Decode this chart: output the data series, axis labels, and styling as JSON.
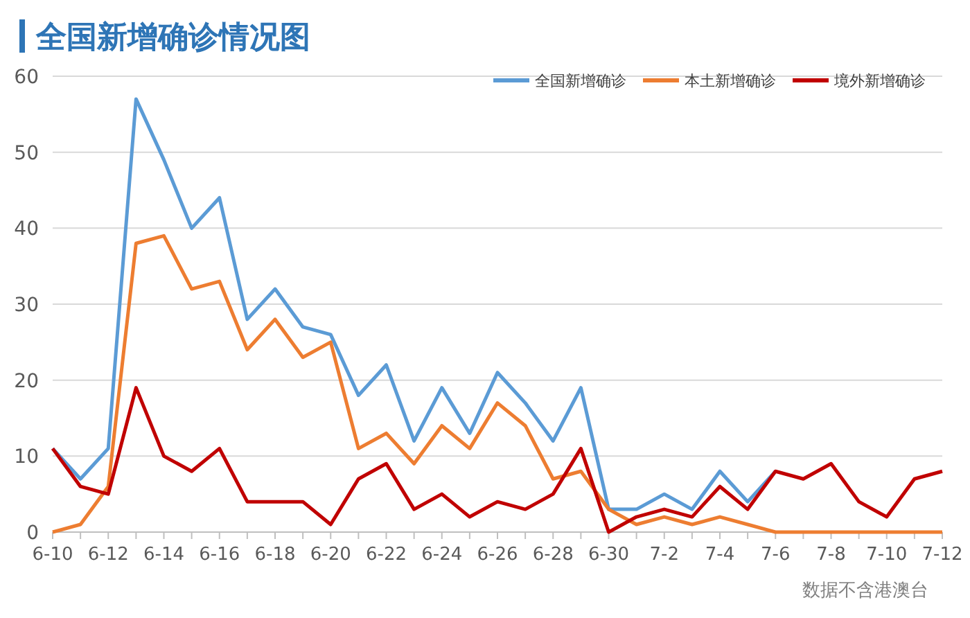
{
  "chart_data": {
    "type": "line",
    "title": "全国新增确诊情况图",
    "categories": [
      "6-10",
      null,
      "6-12",
      null,
      "6-14",
      null,
      "6-16",
      null,
      "6-18",
      null,
      "6-20",
      null,
      "6-22",
      null,
      "6-24",
      null,
      "6-26",
      null,
      "6-28",
      null,
      "6-30",
      null,
      "7-2",
      null,
      "7-4",
      null,
      "7-6",
      null,
      "7-8",
      null,
      "7-10",
      null,
      "7-12"
    ],
    "series": [
      {
        "name": "全国新增确诊",
        "color": "#5b9bd5",
        "values": [
          11,
          7,
          11,
          57,
          49,
          40,
          44,
          28,
          32,
          27,
          26,
          18,
          22,
          12,
          19,
          13,
          21,
          17,
          12,
          19,
          3,
          3,
          5,
          3,
          8,
          4,
          8,
          null,
          null,
          null,
          null,
          null,
          null
        ]
      },
      {
        "name": "本土新增确诊",
        "color": "#ed7d31",
        "values": [
          0,
          1,
          6,
          38,
          39,
          32,
          33,
          24,
          28,
          23,
          25,
          11,
          13,
          9,
          14,
          11,
          17,
          14,
          7,
          8,
          3,
          1,
          2,
          1,
          2,
          1,
          0,
          0,
          0,
          0,
          0,
          0,
          0
        ]
      },
      {
        "name": "境外新增确诊",
        "color": "#c00000",
        "values": [
          11,
          6,
          5,
          19,
          10,
          8,
          11,
          4,
          4,
          4,
          1,
          7,
          9,
          3,
          5,
          2,
          4,
          3,
          5,
          11,
          0,
          2,
          3,
          2,
          6,
          3,
          8,
          7,
          9,
          4,
          2,
          7,
          8
        ]
      }
    ],
    "ylim": [
      0,
      60
    ],
    "yticks": [
      0,
      10,
      20,
      30,
      40,
      50,
      60
    ],
    "grid": "y",
    "legend": "top right",
    "marker": "none",
    "line_style": "solid",
    "annotations": [
      "数据不含港澳台"
    ]
  }
}
